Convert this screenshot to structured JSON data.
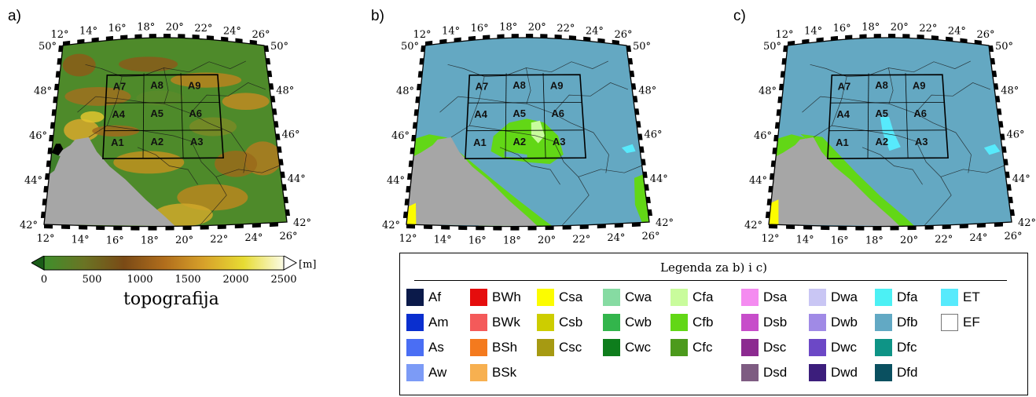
{
  "panels": [
    {
      "letter": "a)"
    },
    {
      "letter": "b)"
    },
    {
      "letter": "c)"
    }
  ],
  "axes": {
    "lon_labels": [
      "12°",
      "14°",
      "16°",
      "18°",
      "20°",
      "22°",
      "24°",
      "26°"
    ],
    "lat_labels": [
      "42°",
      "44°",
      "46°",
      "48°",
      "50°"
    ]
  },
  "grid_cells": {
    "rows": [
      [
        "A7",
        "A8",
        "A9"
      ],
      [
        "A4",
        "A5",
        "A6"
      ],
      [
        "A1",
        "A2",
        "A3"
      ]
    ]
  },
  "colorbar": {
    "ticks": [
      "0",
      "500",
      "1000",
      "1500",
      "2000",
      "2500"
    ],
    "unit": "[m]",
    "title": "topografija",
    "colors": [
      "#3f8f2c",
      "#6a7424",
      "#7a4a16",
      "#b06d1c",
      "#d7a12a",
      "#e7dc33",
      "#fbfbe6"
    ]
  },
  "legend": {
    "title": "Legenda za b) i c)",
    "columns": [
      [
        {
          "code": "Af",
          "color": "#0b1a4a"
        },
        {
          "code": "Am",
          "color": "#0a2fcf"
        },
        {
          "code": "As",
          "color": "#4a6ef4"
        },
        {
          "code": "Aw",
          "color": "#7c9bf6"
        }
      ],
      [
        {
          "code": "BWh",
          "color": "#e50d0d"
        },
        {
          "code": "BWk",
          "color": "#f45a5a"
        },
        {
          "code": "BSh",
          "color": "#f47a1e"
        },
        {
          "code": "BSk",
          "color": "#f7b050"
        }
      ],
      [
        {
          "code": "Csa",
          "color": "#fcfc00"
        },
        {
          "code": "Csb",
          "color": "#cdcd00"
        },
        {
          "code": "Csc",
          "color": "#a69a12"
        }
      ],
      [
        {
          "code": "Cwa",
          "color": "#86dba2"
        },
        {
          "code": "Cwb",
          "color": "#33b54c"
        },
        {
          "code": "Cwc",
          "color": "#0e7d1c"
        }
      ],
      [
        {
          "code": "Cfa",
          "color": "#c9fc9c"
        },
        {
          "code": "Cfb",
          "color": "#62d716"
        },
        {
          "code": "Cfc",
          "color": "#4c9a1c"
        }
      ],
      [
        {
          "code": "Dsa",
          "color": "#f48bf0"
        },
        {
          "code": "Dsb",
          "color": "#c74dca"
        },
        {
          "code": "Dsc",
          "color": "#8c2a90"
        },
        {
          "code": "Dsd",
          "color": "#7e5c82"
        }
      ],
      [
        {
          "code": "Dwa",
          "color": "#c9c6f4"
        },
        {
          "code": "Dwb",
          "color": "#a08ae6"
        },
        {
          "code": "Dwc",
          "color": "#6c48c6"
        },
        {
          "code": "Dwd",
          "color": "#3c1e7c"
        }
      ],
      [
        {
          "code": "Dfa",
          "color": "#4cf0f4"
        },
        {
          "code": "Dfb",
          "color": "#62a9c4"
        },
        {
          "code": "Dfc",
          "color": "#0e9486"
        },
        {
          "code": "Dfd",
          "color": "#0a5060"
        }
      ],
      [
        {
          "code": "ET",
          "color": "#57eafc"
        },
        {
          "code": "EF",
          "color": "#ffffff"
        }
      ]
    ]
  },
  "map_colors": {
    "sea": "#a6a6a6",
    "dfb": "#64a8c2",
    "cfb": "#62d716",
    "cfa": "#c9fc9c",
    "csa": "#fcfc00",
    "et": "#57eafc",
    "border": "#1a1a1a",
    "frame_white": "#ffffff"
  }
}
